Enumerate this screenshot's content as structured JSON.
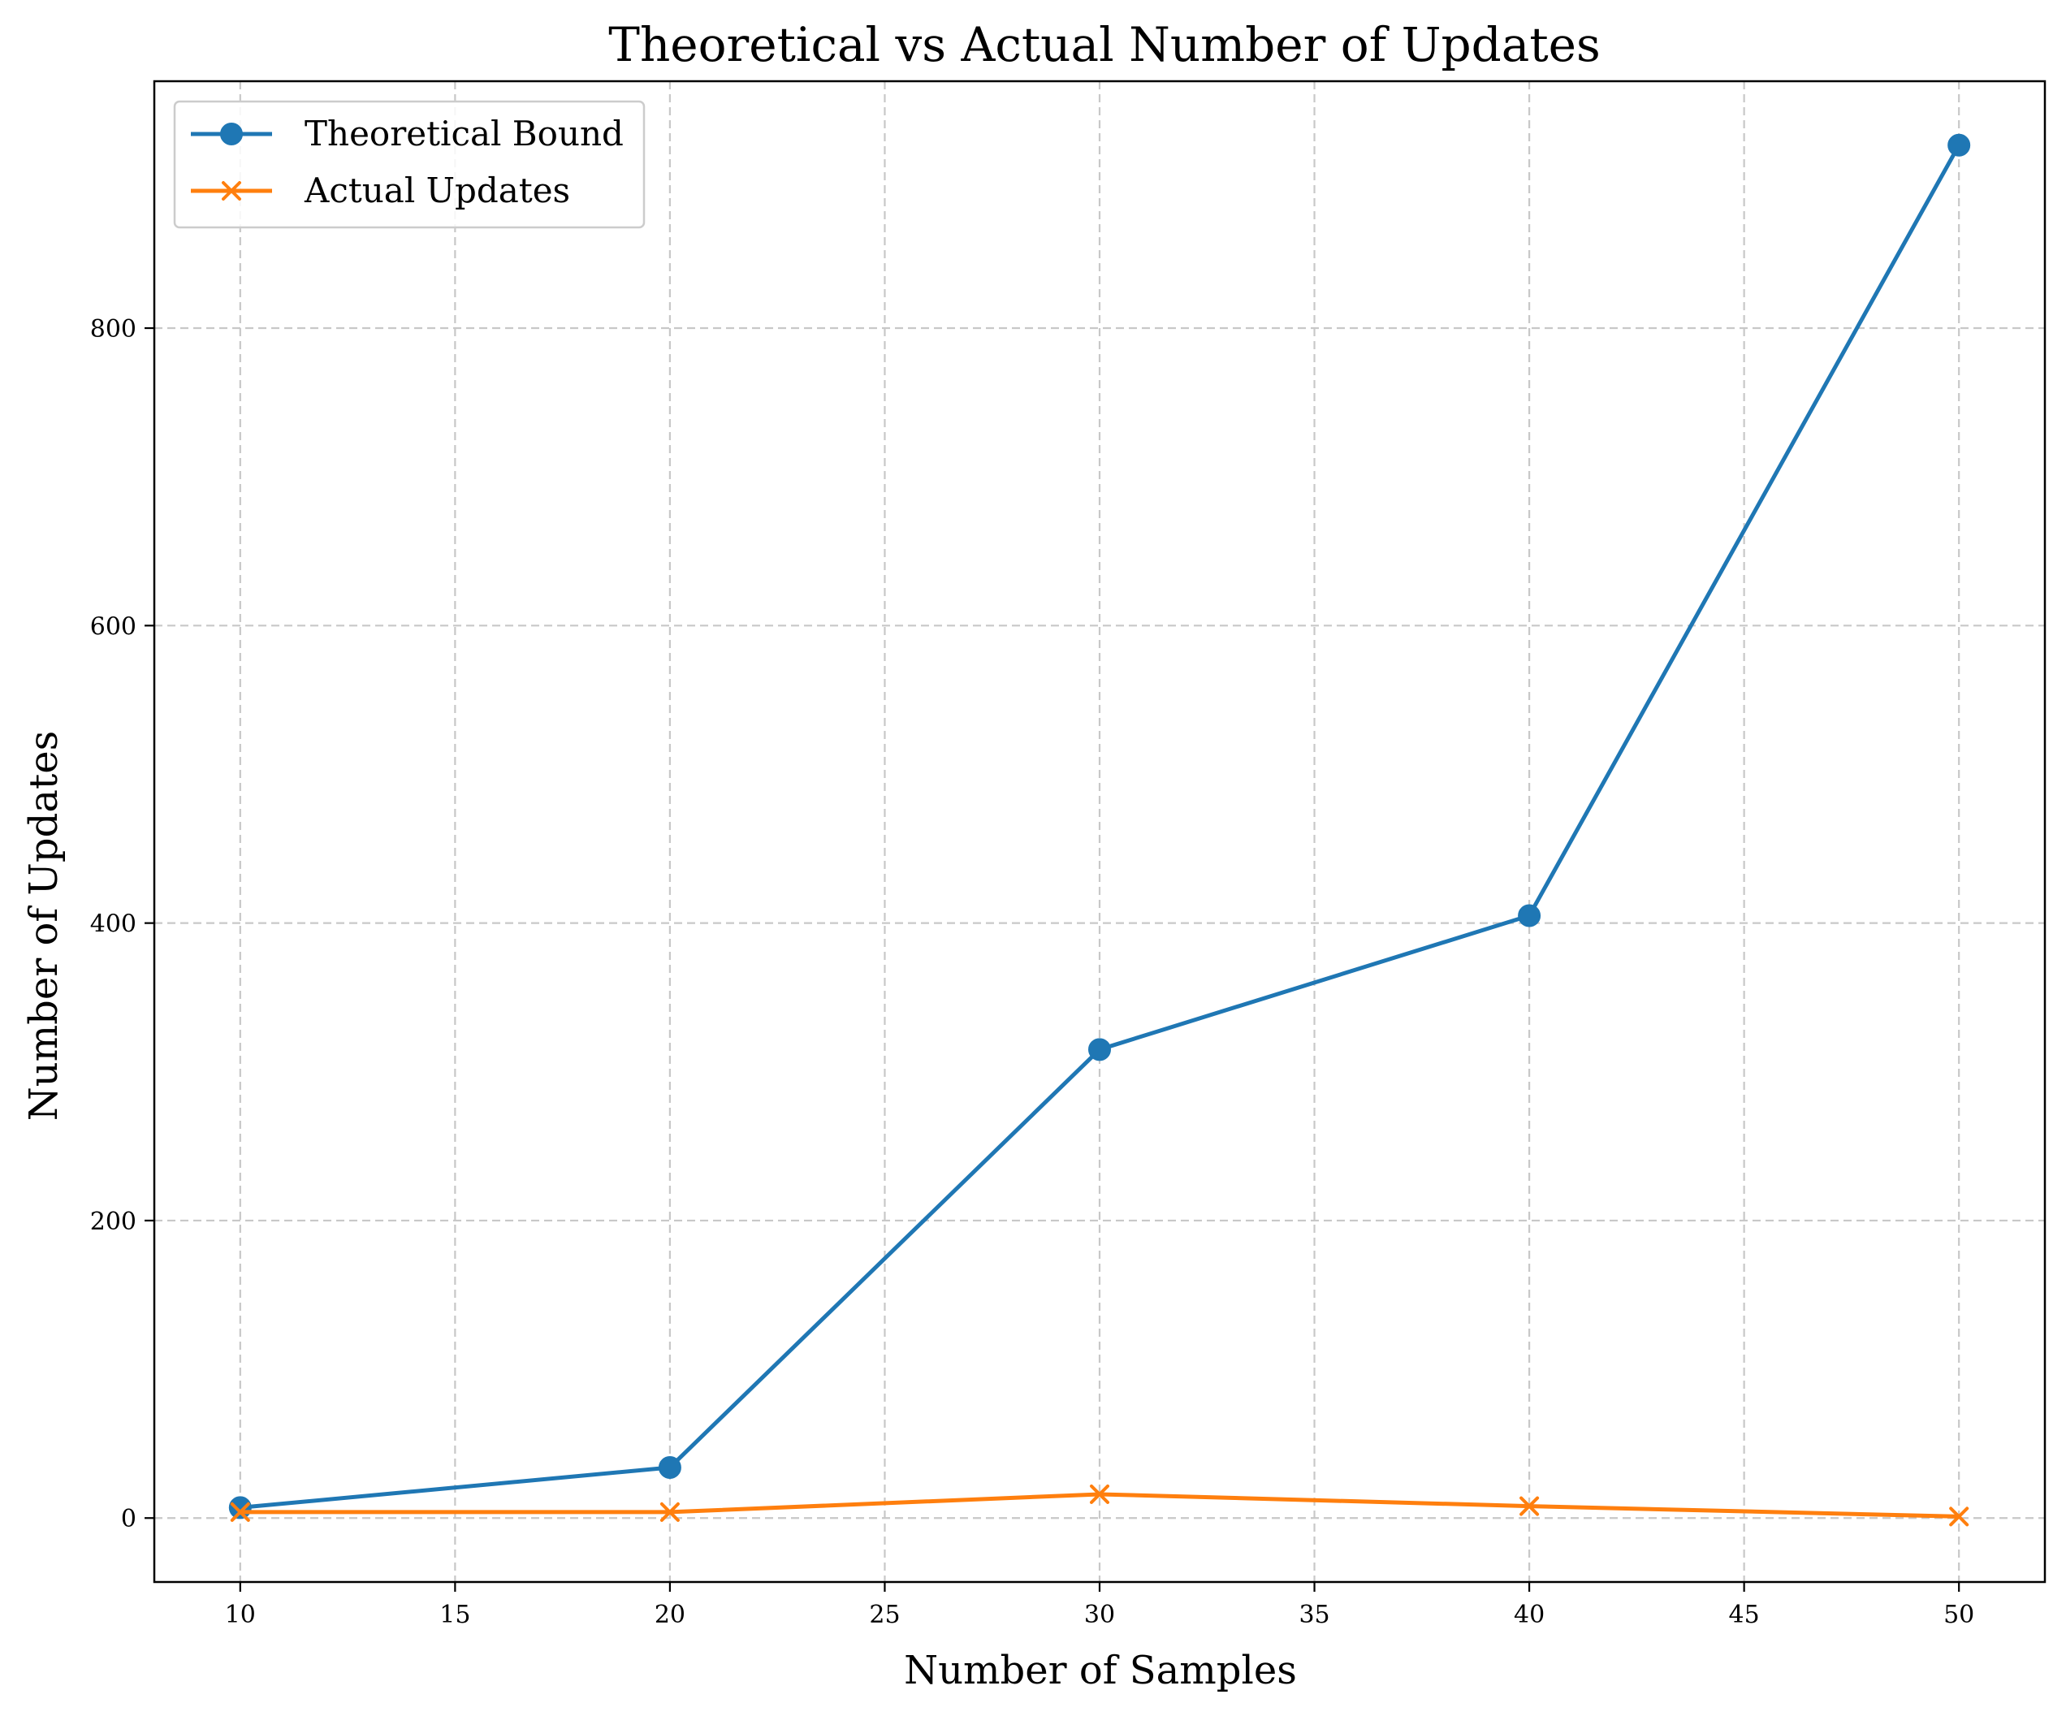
{
  "chart_data": {
    "type": "line",
    "title": "Theoretical vs Actual Number of Updates",
    "xlabel": "Number of Samples",
    "ylabel": "Number of Updates",
    "xlim": [
      8,
      52
    ],
    "ylim": [
      -43,
      966
    ],
    "xticks": [
      10,
      15,
      20,
      25,
      30,
      35,
      40,
      45,
      50
    ],
    "yticks": [
      0,
      200,
      400,
      600,
      800
    ],
    "grid": true,
    "legend_position": "top-left",
    "x": [
      10,
      20,
      30,
      40,
      50
    ],
    "series": [
      {
        "name": "Theoretical Bound",
        "color": "#1f77b4",
        "marker": "circle",
        "values": [
          7,
          34,
          315,
          405,
          923
        ]
      },
      {
        "name": "Actual Updates",
        "color": "#ff7f0e",
        "marker": "x",
        "values": [
          4,
          4,
          16,
          8,
          1
        ]
      }
    ]
  }
}
